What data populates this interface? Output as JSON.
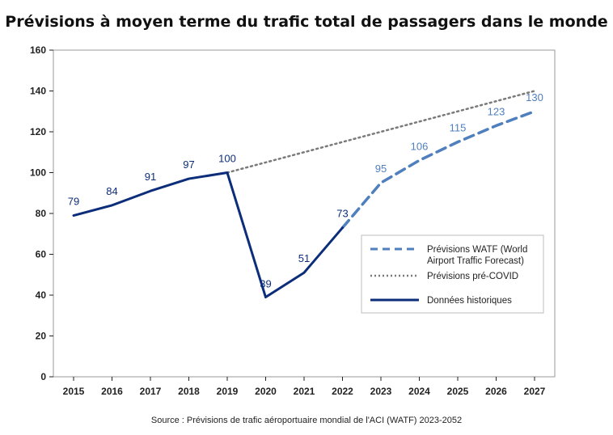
{
  "title": "Prévisions à moyen terme du trafic total de passagers dans le monde",
  "source": "Source : Prévisions de trafic aéroportuaire mondial de l'ACI (WATF) 2023-2052",
  "colors": {
    "historical": "#0c2d7a",
    "forecast": "#4f7fbd",
    "precovid": "#7a7a7a",
    "axis": "#222222"
  },
  "chart_data": {
    "type": "line",
    "title": "Prévisions à moyen terme du trafic total de passagers dans le monde",
    "xlabel": "",
    "ylabel": "",
    "ylim": [
      0,
      160
    ],
    "yticks": [
      0,
      20,
      40,
      60,
      80,
      100,
      120,
      140,
      160
    ],
    "x": [
      2015,
      2016,
      2017,
      2018,
      2019,
      2020,
      2021,
      2022,
      2023,
      2024,
      2025,
      2026,
      2027
    ],
    "grid": false,
    "legend_position": "bottom-right",
    "series": [
      {
        "name": "Données historiques",
        "style": "solid",
        "x": [
          2015,
          2016,
          2017,
          2018,
          2019,
          2020,
          2021,
          2022
        ],
        "values": [
          79,
          84,
          91,
          97,
          100,
          39,
          51,
          73
        ],
        "labels": [
          "79",
          "84",
          "91",
          "97",
          "100",
          "39",
          "51",
          "73"
        ]
      },
      {
        "name": "Prévisions WATF (World Airport Traffic Forecast)",
        "legend_lines": [
          "Prévisions WATF (World",
          "Airport Traffic Forecast)"
        ],
        "style": "dashed",
        "x": [
          2022,
          2023,
          2024,
          2025,
          2026,
          2027
        ],
        "values": [
          73,
          95,
          106,
          115,
          123,
          130
        ],
        "labels": [
          "",
          "95",
          "106",
          "115",
          "123",
          "130"
        ]
      },
      {
        "name": "Prévisions pré-COVID",
        "style": "dotted",
        "x": [
          2019,
          2027
        ],
        "values": [
          100,
          140
        ],
        "labels": [
          "",
          ""
        ]
      }
    ]
  }
}
